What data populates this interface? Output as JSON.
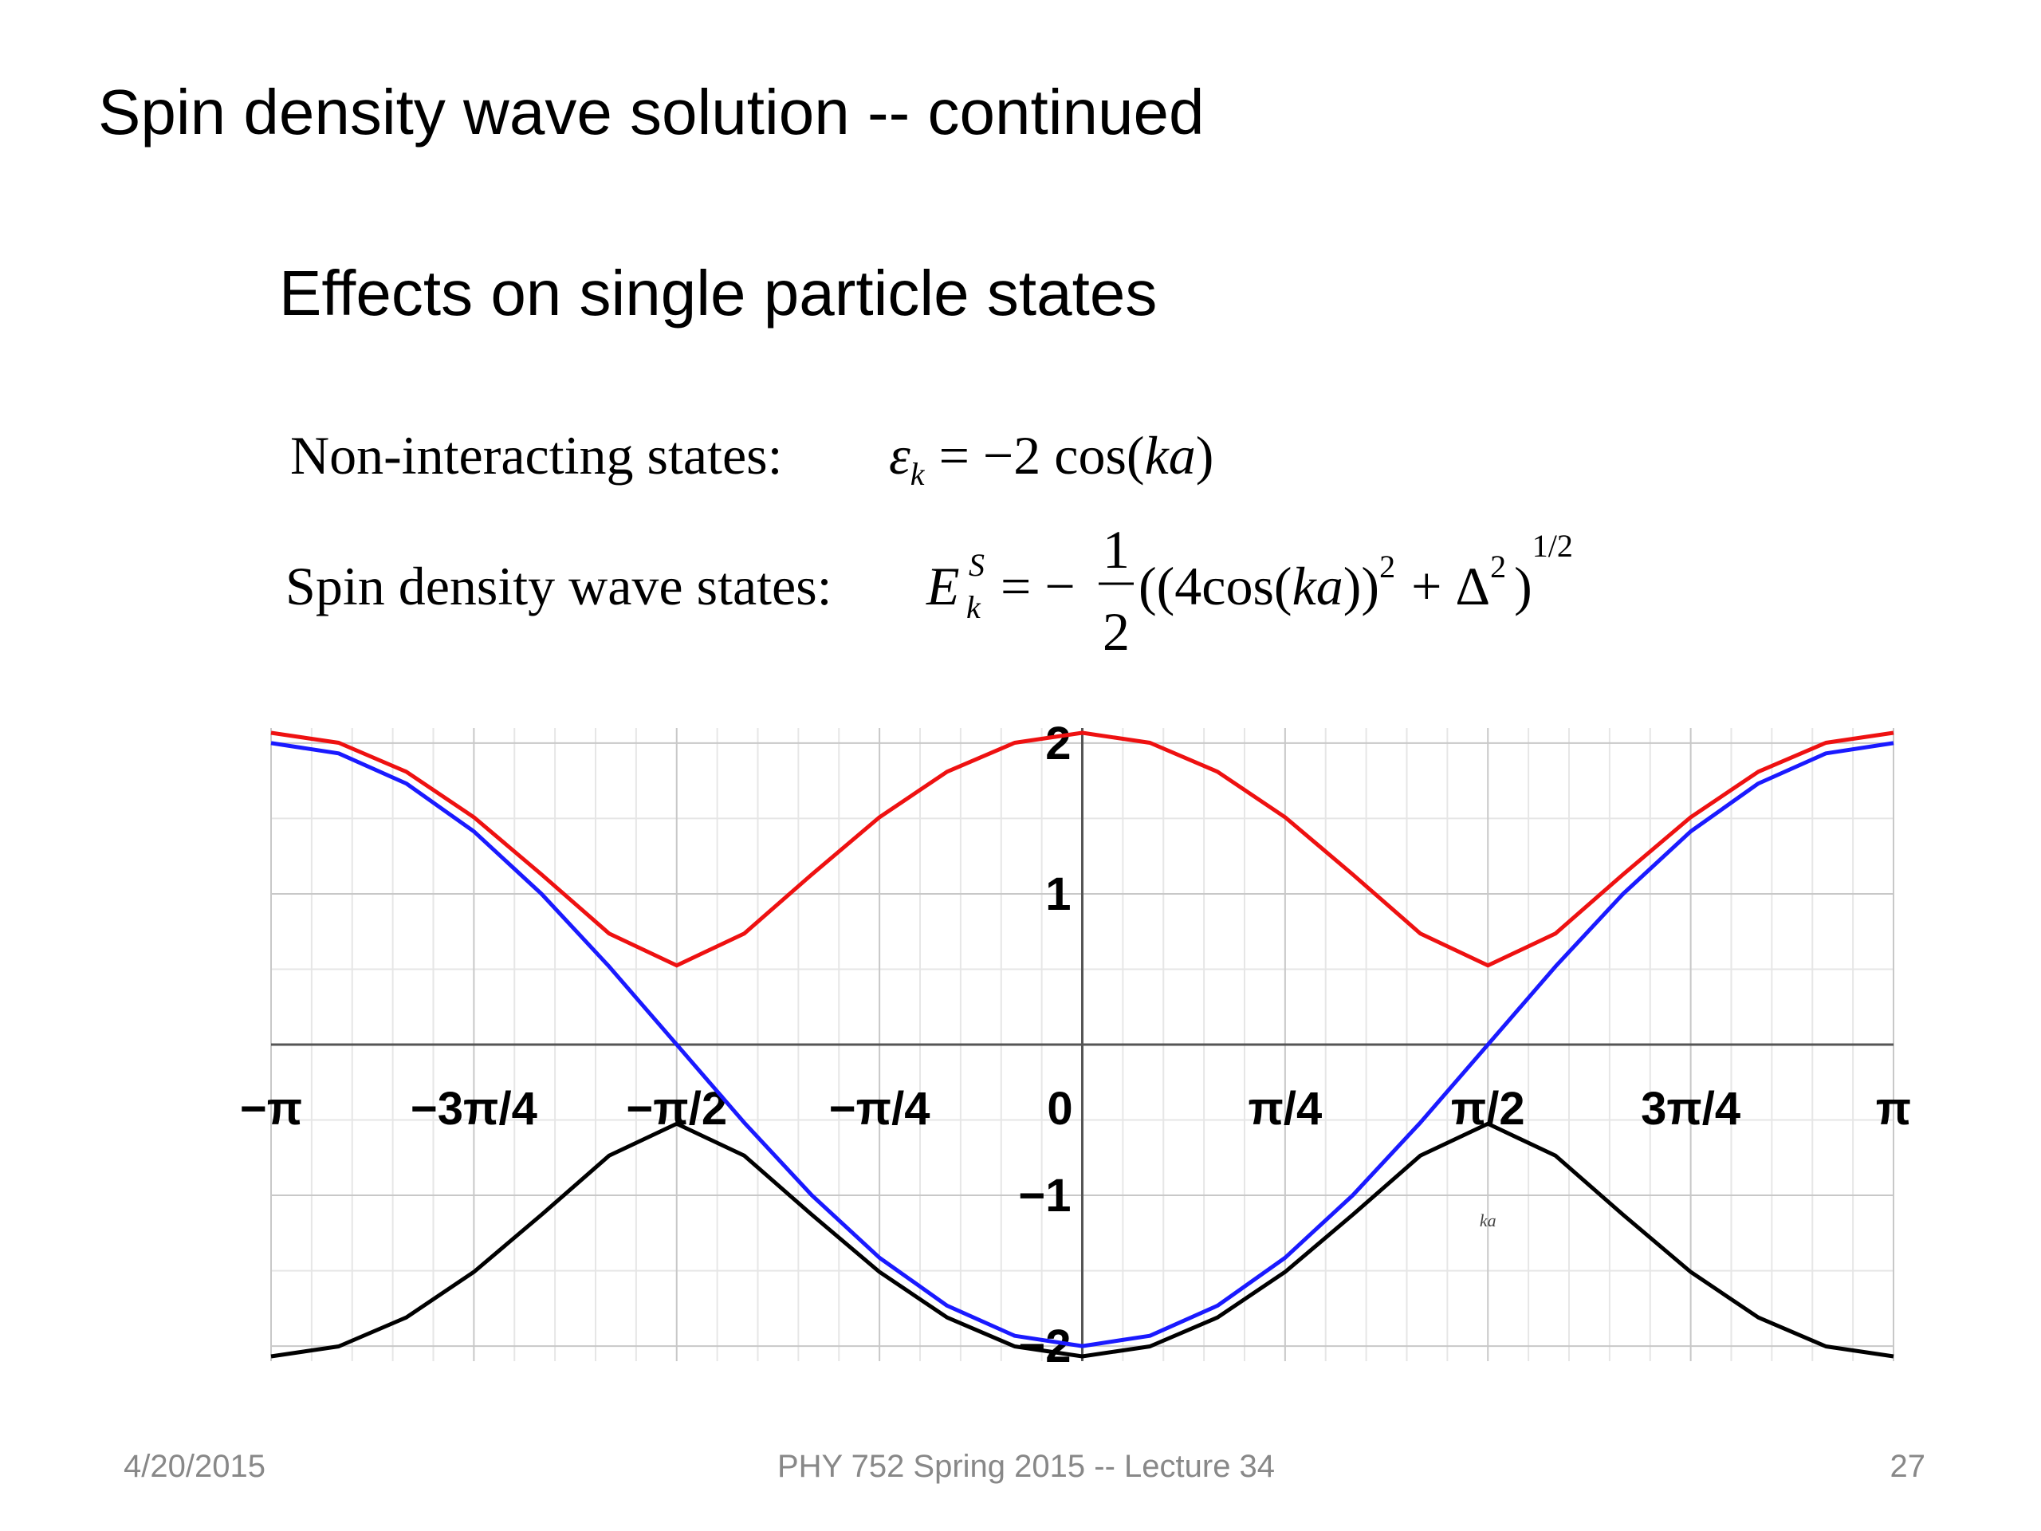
{
  "header": {
    "title": "Spin density wave solution -- continued",
    "subtitle": "Effects on single particle states"
  },
  "equations": {
    "non_interacting": {
      "label": "Non-interacting states:",
      "parts": [
        "ε",
        "k",
        "= −2 cos(",
        "ka",
        ")"
      ]
    },
    "sdw": {
      "label": "Spin density wave states:",
      "parts": [
        "E",
        "S",
        "k",
        "= −",
        "1",
        "2",
        "((4cos(",
        "ka",
        "))",
        "2",
        "+ Δ",
        "2",
        ")",
        "1/2"
      ]
    }
  },
  "chart_data": {
    "type": "line",
    "xlabel": "ka",
    "x": [
      -3.1416,
      -2.8798,
      -2.618,
      -2.3562,
      -2.0944,
      -1.8326,
      -1.5708,
      -1.309,
      -1.0472,
      -0.7854,
      -0.5236,
      -0.2618,
      0,
      0.2618,
      0.5236,
      0.7854,
      1.0472,
      1.309,
      1.5708,
      1.8326,
      2.0944,
      2.3562,
      2.618,
      2.8798,
      3.1416
    ],
    "series": [
      {
        "color": "#ee1111",
        "values": [
          2.068,
          2.002,
          1.81,
          1.508,
          1.129,
          0.737,
          0.525,
          0.737,
          1.129,
          1.508,
          1.81,
          2.002,
          2.068,
          2.002,
          1.81,
          1.508,
          1.129,
          0.737,
          0.525,
          0.737,
          1.129,
          1.508,
          1.81,
          2.002,
          2.068
        ]
      },
      {
        "color": "#1a1aff",
        "values": [
          2,
          1.932,
          1.732,
          1.414,
          1,
          0.518,
          0,
          -0.518,
          -1,
          -1.414,
          -1.732,
          -1.932,
          -2,
          -1.932,
          -1.732,
          -1.414,
          -1,
          -0.518,
          0,
          0.518,
          1,
          1.414,
          1.732,
          1.932,
          2
        ]
      },
      {
        "color": "#000000",
        "values": [
          -2.068,
          -2.002,
          -1.81,
          -1.508,
          -1.129,
          -0.737,
          -0.525,
          -0.737,
          -1.129,
          -1.508,
          -1.81,
          -2.002,
          -2.068,
          -2.002,
          -1.81,
          -1.508,
          -1.129,
          -0.737,
          -0.525,
          -0.737,
          -1.129,
          -1.508,
          -1.81,
          -2.002,
          -2.068
        ]
      }
    ],
    "xlim": [
      -3.1416,
      3.1416
    ],
    "ylim": [
      -2.1,
      2.1
    ],
    "xticks": [
      {
        "value": -3.1416,
        "label": "−π"
      },
      {
        "value": -2.3562,
        "label": "−3π/4"
      },
      {
        "value": -1.5708,
        "label": "−π/2"
      },
      {
        "value": -0.7854,
        "label": "−π/4"
      },
      0,
      {
        "value": 0.7854,
        "label": "π/4"
      },
      {
        "value": 1.5708,
        "label": "π/2"
      },
      {
        "value": 2.3562,
        "label": "3π/4"
      },
      {
        "value": 3.1416,
        "label": "π"
      }
    ],
    "yticks": [
      {
        "value": -2,
        "label": "−2"
      },
      {
        "value": -1,
        "label": "−1"
      },
      1,
      2
    ],
    "grid": true
  },
  "footer": {
    "date": "4/20/2015",
    "course": "PHY 752  Spring 2015 -- Lecture 34",
    "page": "27"
  }
}
